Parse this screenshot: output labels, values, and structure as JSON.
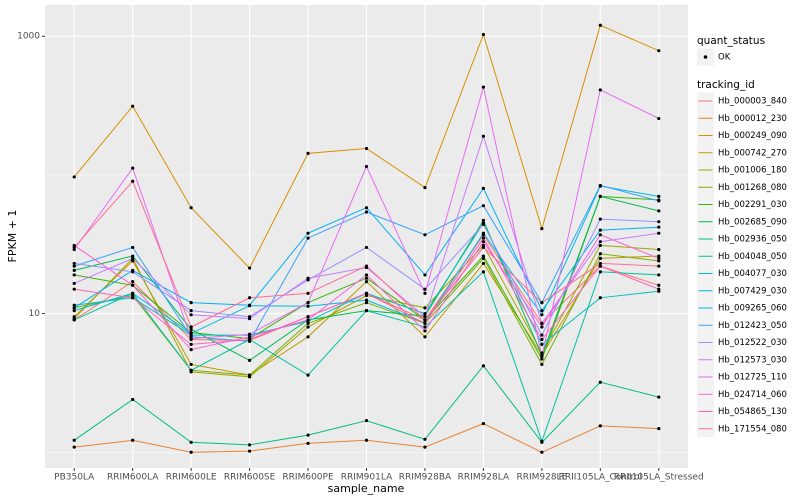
{
  "chart_data": {
    "type": "line",
    "x_label": "sample_name",
    "y_label": "FPKM + 1",
    "categories": [
      "PB350LA",
      "RRIM600LA",
      "RRIM600LE",
      "RRIM600SE",
      "RRIM600PE",
      "RRIM901LA",
      "RRIM928BA",
      "RRIM928LA",
      "RRIM928LE",
      "RRII105LA_Control",
      "RRII105LA_Stressed"
    ],
    "y_scale": "log",
    "ylim": [
      0.77,
      1680
    ],
    "yticks": [
      10,
      1000
    ],
    "y_minor_grid": [
      1,
      100
    ],
    "grid": true,
    "legend_position": "right",
    "point_legend": {
      "title": "quant_status",
      "entries": [
        "OK"
      ],
      "color": "#000000"
    },
    "legend_title": "tracking_id",
    "series": [
      {
        "name": "Hb_000003_840",
        "color": "#F8766D",
        "values": [
          9,
          17,
          6.5,
          6.4,
          9.5,
          14,
          9,
          37,
          8.5,
          22,
          16
        ]
      },
      {
        "name": "Hb_000012_230",
        "color": "#EA8331",
        "values": [
          1.09,
          1.22,
          1.0,
          1.02,
          1.16,
          1.22,
          1.09,
          1.61,
          1.0,
          1.55,
          1.48
        ]
      },
      {
        "name": "Hb_000249_090",
        "color": "#D89000",
        "values": [
          96.7,
          313,
          58,
          21.3,
          143,
          155,
          81,
          1030,
          41,
          1200,
          787
        ]
      },
      {
        "name": "Hb_000742_270",
        "color": "#C09B00",
        "values": [
          9.5,
          24,
          4.3,
          3.6,
          6.8,
          17,
          6.8,
          23,
          5,
          25,
          26
        ]
      },
      {
        "name": "Hb_001006_180",
        "color": "#A3A500",
        "values": [
          9.2,
          25,
          3.8,
          3.5,
          8,
          13.5,
          11,
          31,
          5.2,
          31,
          29
        ]
      },
      {
        "name": "Hb_001268_080",
        "color": "#7CAE00",
        "values": [
          11,
          13.5,
          3.9,
          3.6,
          8.5,
          12,
          8.5,
          25,
          4.3,
          27,
          24
        ]
      },
      {
        "name": "Hb_002291_030",
        "color": "#39B600",
        "values": [
          19,
          16,
          7.3,
          6.6,
          12,
          18,
          9,
          26,
          4.7,
          70,
          66
        ]
      },
      {
        "name": "Hb_002685_090",
        "color": "#00BB4E",
        "values": [
          20.5,
          26,
          7.7,
          4.6,
          9,
          10.5,
          9.6,
          47,
          5,
          70,
          55
        ]
      },
      {
        "name": "Hb_002936_050",
        "color": "#00BF7D",
        "values": [
          1.22,
          2.4,
          1.18,
          1.13,
          1.33,
          1.69,
          1.24,
          4.2,
          1.18,
          3.2,
          2.5
        ]
      },
      {
        "name": "Hb_004048_050",
        "color": "#00C1A3",
        "values": [
          9,
          14,
          3.9,
          6.5,
          3.6,
          10.5,
          8,
          20,
          1.2,
          20,
          19
        ]
      },
      {
        "name": "Hb_004077_030",
        "color": "#00BFC4",
        "values": [
          11.5,
          13,
          7,
          7,
          8.8,
          14,
          10,
          45,
          6,
          13,
          14.5
        ]
      },
      {
        "name": "Hb_007429_030",
        "color": "#00BAE0",
        "values": [
          10.5,
          14,
          7.2,
          11.4,
          11.3,
          12.5,
          8.6,
          38,
          9.8,
          83,
          70
        ]
      },
      {
        "name": "Hb_009265_060",
        "color": "#00B0F6",
        "values": [
          11,
          20.5,
          12,
          11.5,
          38,
          58,
          19,
          80,
          10.5,
          40,
          42
        ]
      },
      {
        "name": "Hb_012423_050",
        "color": "#35A2FF",
        "values": [
          22,
          30,
          6.8,
          6.3,
          35,
          54,
          37,
          60,
          12,
          84,
          65
        ]
      },
      {
        "name": "Hb_012522_030",
        "color": "#9590FF",
        "values": [
          23,
          20,
          10.5,
          9.5,
          17.5,
          30,
          15,
          44,
          7,
          48,
          46
        ]
      },
      {
        "name": "Hb_012573_030",
        "color": "#C77CFF",
        "values": [
          16.5,
          25,
          9.8,
          9.2,
          18,
          21.5,
          9.5,
          190,
          8.5,
          33,
          38
        ]
      },
      {
        "name": "Hb_012725_110",
        "color": "#E76BF3",
        "values": [
          29,
          112,
          6.6,
          7.1,
          12,
          115,
          14,
          430,
          4.9,
          410,
          255
        ]
      },
      {
        "name": "Hb_024714_060",
        "color": "#FA62DB",
        "values": [
          31,
          16,
          5.5,
          6.8,
          9,
          19,
          7.5,
          33,
          8,
          37,
          25
        ]
      },
      {
        "name": "Hb_054865_130",
        "color": "#FF62BC",
        "values": [
          15,
          13,
          6,
          6.5,
          9.5,
          14,
          8.5,
          35,
          6.5,
          22,
          15
        ]
      },
      {
        "name": "Hb_171554_080",
        "color": "#FF6C91",
        "values": [
          30,
          90,
          8,
          13,
          14,
          22,
          9,
          30,
          12,
          23,
          22
        ]
      }
    ]
  }
}
